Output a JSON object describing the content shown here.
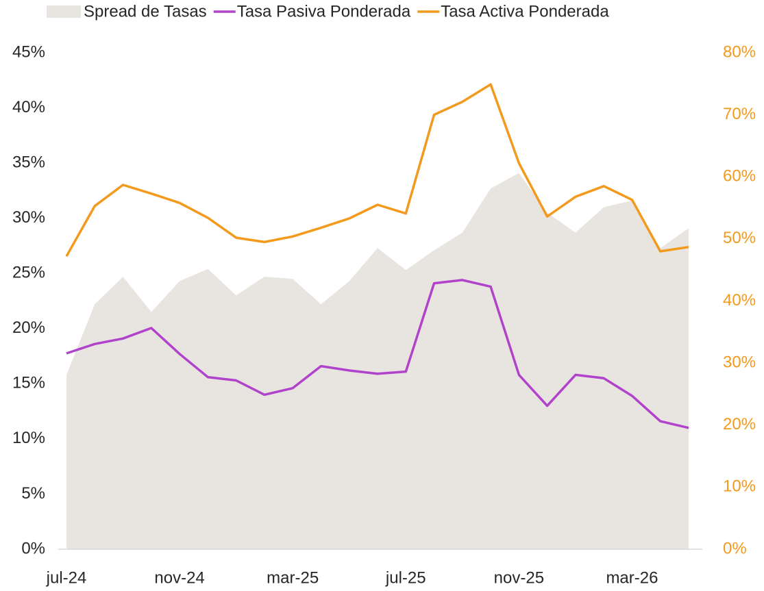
{
  "chart_data": {
    "type": "line",
    "categories": [
      "jul-24",
      null,
      null,
      null,
      "nov-24",
      null,
      null,
      null,
      "mar-25",
      null,
      null,
      null,
      "jul-25",
      null,
      null,
      null,
      "nov-25",
      null,
      null,
      null,
      "mar-26",
      null,
      null
    ],
    "series": [
      {
        "name": "Spread de Tasas",
        "style": "area",
        "color": "#e8e5e1",
        "axis": "y",
        "values": [
          15.8,
          22.2,
          24.7,
          21.5,
          24.3,
          25.4,
          23.0,
          24.7,
          24.5,
          22.2,
          24.3,
          27.3,
          25.3,
          27.1,
          28.7,
          32.7,
          34.1,
          30.5,
          28.7,
          31.0,
          31.6,
          27.3,
          29.1
        ]
      },
      {
        "name": "Tasa Pasiva Ponderada",
        "style": "line",
        "color": "#b042cc",
        "axis": "y",
        "values": [
          17.75,
          18.6,
          19.1,
          20.05,
          17.7,
          15.6,
          15.3,
          14.0,
          14.6,
          16.6,
          16.2,
          15.9,
          16.1,
          24.1,
          24.4,
          23.8,
          15.8,
          13.0,
          15.8,
          15.5,
          13.9,
          11.6,
          11.0
        ]
      },
      {
        "name": "Tasa Activa Ponderada",
        "style": "line",
        "color": "#f39a1d",
        "axis": "y2",
        "values": [
          47.2,
          55.3,
          58.7,
          57.3,
          55.8,
          53.4,
          50.2,
          49.5,
          50.4,
          51.8,
          53.3,
          55.5,
          54.1,
          70.0,
          72.1,
          74.9,
          62.2,
          53.6,
          56.8,
          58.5,
          56.3,
          48.0,
          48.7
        ]
      }
    ],
    "ylim": [
      0,
      45
    ],
    "yticks": [
      {
        "value": 0,
        "label": "0%"
      },
      {
        "value": 5,
        "label": "5%"
      },
      {
        "value": 10,
        "label": "10%"
      },
      {
        "value": 15,
        "label": "15%"
      },
      {
        "value": 20,
        "label": "20%"
      },
      {
        "value": 25,
        "label": "25%"
      },
      {
        "value": 30,
        "label": "30%"
      },
      {
        "value": 35,
        "label": "35%"
      },
      {
        "value": 40,
        "label": "40%"
      },
      {
        "value": 45,
        "label": "45%"
      }
    ],
    "y2lim": [
      0,
      80
    ],
    "y2ticks": [
      {
        "value": 0,
        "label": "0%"
      },
      {
        "value": 10,
        "label": "10%"
      },
      {
        "value": 20,
        "label": "20%"
      },
      {
        "value": 30,
        "label": "30%"
      },
      {
        "value": 40,
        "label": "40%"
      },
      {
        "value": 50,
        "label": "50%"
      },
      {
        "value": 60,
        "label": "60%"
      },
      {
        "value": 70,
        "label": "70%"
      },
      {
        "value": 80,
        "label": "80%"
      }
    ],
    "y2color": "#f39a1d",
    "legend": "top"
  }
}
